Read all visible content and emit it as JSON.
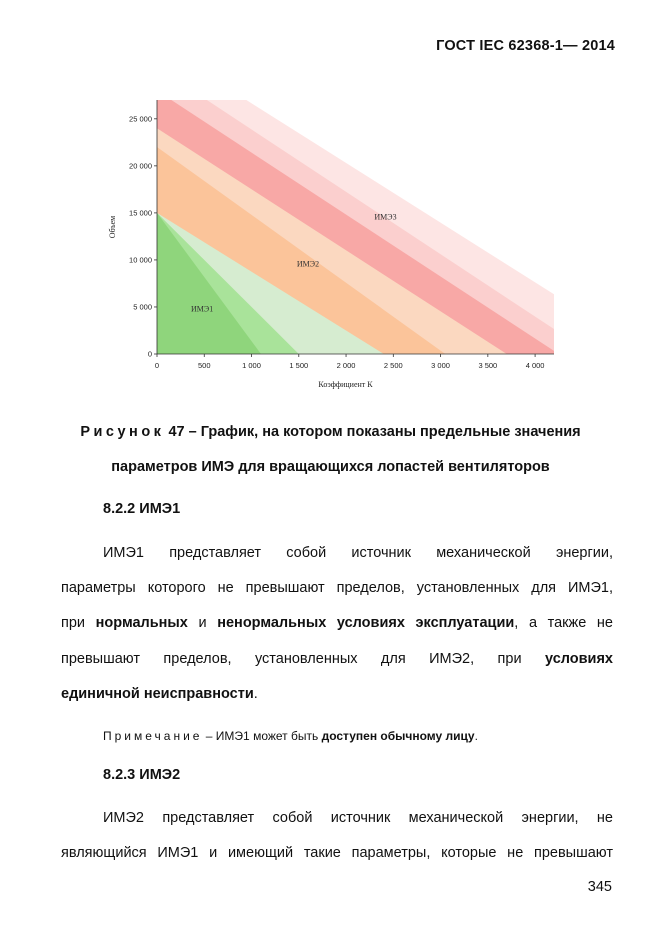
{
  "header": {
    "doc_code": "ГОСТ IEC 62368-1— 2014"
  },
  "chart_data": {
    "type": "area",
    "title": "",
    "xlabel": "Коэффициент К",
    "ylabel": "Объем",
    "xlim": [
      0,
      4200
    ],
    "ylim": [
      0,
      27000
    ],
    "x_ticks": [
      0,
      500,
      1000,
      1500,
      2000,
      2500,
      3000,
      3500,
      4000
    ],
    "x_tick_labels": [
      "0",
      "500",
      "1 000",
      "1 500",
      "2 000",
      "2 500",
      "3 000",
      "3 500",
      "4 000"
    ],
    "y_ticks": [
      0,
      5000,
      10000,
      15000,
      20000,
      25000
    ],
    "y_tick_labels": [
      "0",
      "5 000",
      "10 000",
      "15 000",
      "20 000",
      "25 000"
    ],
    "grid": false,
    "regions": [
      {
        "name": "ИМЭ1",
        "label_at": [
          360,
          4500
        ],
        "color": "#8fd57c",
        "boundary_x_intercept": 1100,
        "boundary_y_intercept": 15000
      },
      {
        "name": "",
        "label_at": null,
        "color": "#a9e39a",
        "boundary_x_intercept": 1500,
        "boundary_y_intercept": 15000
      },
      {
        "name": "",
        "label_at": null,
        "color": "#d6ecd0",
        "boundary_x_intercept": 2400,
        "boundary_y_intercept": 15000
      },
      {
        "name": "ИМЭ2",
        "label_at": [
          1480,
          9300
        ],
        "color": "#fbc49a",
        "boundary_x_intercept": 3050,
        "boundary_y_intercept": 22000
      },
      {
        "name": "",
        "label_at": null,
        "color": "#fbd8c0",
        "boundary_x_intercept": 3700,
        "boundary_y_intercept": 24000
      },
      {
        "name": "",
        "label_at": null,
        "color": "#f8a8a6",
        "boundary_x_intercept": 4250,
        "boundary_y_intercept": 28000
      },
      {
        "name": "ИМЭ3",
        "label_at": [
          2300,
          14300
        ],
        "color": "#fbcfce",
        "boundary_x_intercept": 4600,
        "boundary_y_intercept": 30500
      },
      {
        "name": "",
        "label_at": null,
        "color": "#fde5e4",
        "boundary_x_intercept": 5200,
        "boundary_y_intercept": 33000
      }
    ]
  },
  "caption": {
    "prefix": "Рисунок",
    "number_text": "47 – График, на котором показаны предельные значения",
    "line2": "параметров ИМЭ для вращающихся лопастей вентиляторов"
  },
  "section_822": {
    "heading": "8.2.2 ИМЭ1"
  },
  "para1": {
    "line1": "ИМЭ1 представляет собой источник механической энергии,",
    "line2": "параметры которого не превышают пределов, установленных для ИМЭ1,",
    "line3_a": "при ",
    "line3_b": "нормальных",
    "line3_c": " и ",
    "line3_d": "ненормальных условиях эксплуатации",
    "line3_e": ", а также не",
    "line4_a": "превышают пределов, установленных для ИМЭ2, при ",
    "line4_b": "условиях",
    "line5_a": "единичной неисправности",
    "line5_b": "."
  },
  "note": {
    "label": "Примечание",
    "text_a": " – ИМЭ1 может быть ",
    "text_b": "доступен обычному лицу",
    "text_c": "."
  },
  "section_823": {
    "heading": "8.2.3 ИМЭ2"
  },
  "para2": {
    "line1": "ИМЭ2 представляет собой источник механической энергии, не",
    "line2": "являющийся ИМЭ1 и имеющий такие параметры, которые не превышают"
  },
  "page_number": "345"
}
